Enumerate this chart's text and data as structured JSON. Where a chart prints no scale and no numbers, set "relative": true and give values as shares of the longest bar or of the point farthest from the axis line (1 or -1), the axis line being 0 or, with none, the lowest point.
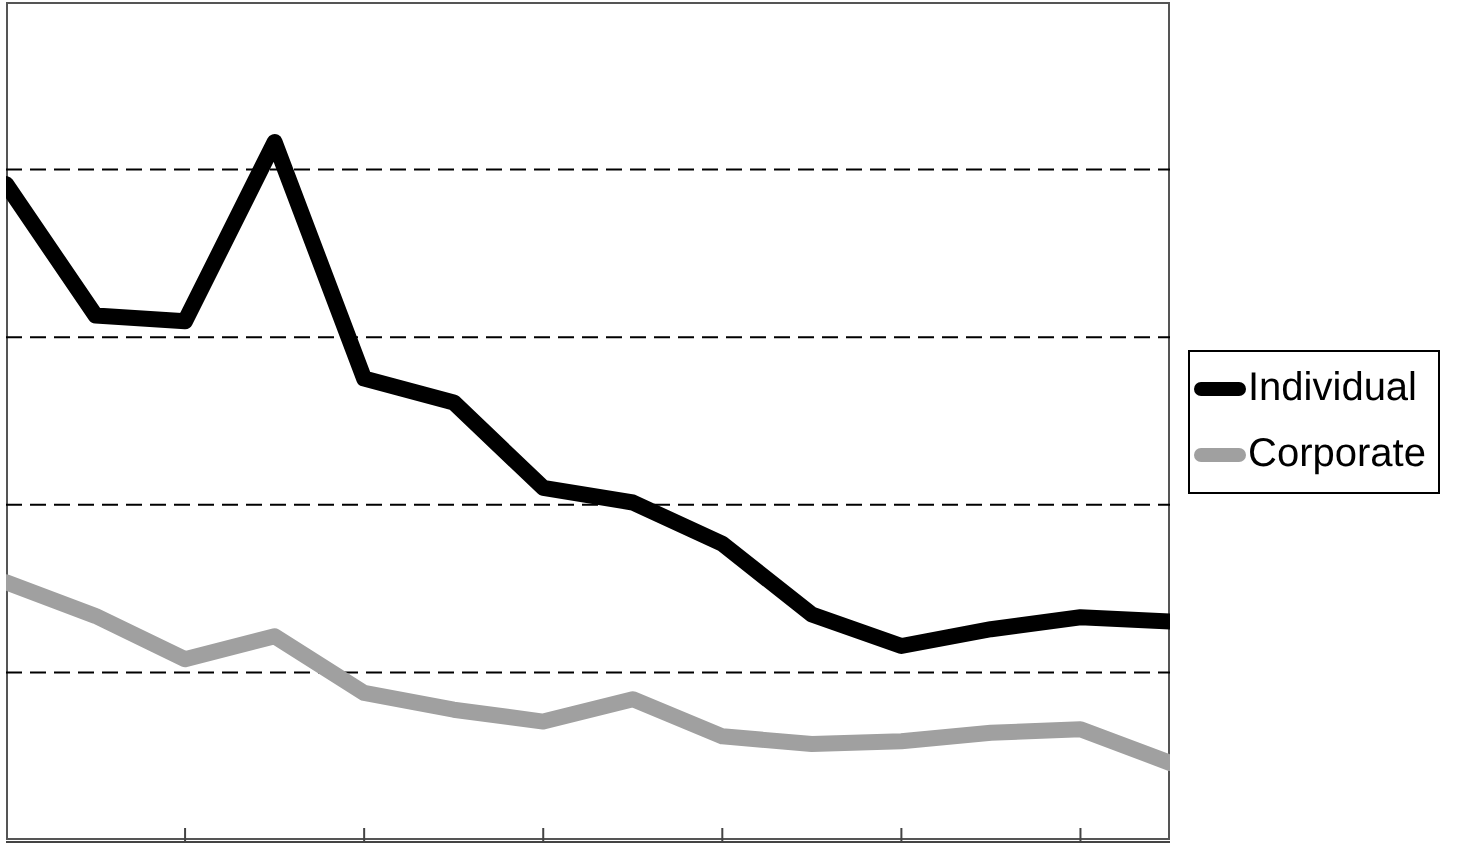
{
  "chart_data": {
    "type": "line",
    "relative": true,
    "categories": [
      null,
      null,
      null,
      null,
      null,
      null,
      null,
      null,
      null,
      null,
      null,
      null,
      null,
      null
    ],
    "series": [
      {
        "name": "Individual",
        "color": "#000000",
        "values": [
          0.94,
          0.752,
          0.744,
          1,
          0.662,
          0.628,
          0.506,
          0.485,
          0.426,
          0.325,
          0.28,
          0.304,
          0.321,
          0.315
        ]
      },
      {
        "name": "Corporate",
        "color": "#a0a0a0",
        "values": [
          0.371,
          0.323,
          0.261,
          0.294,
          0.213,
          0.189,
          0.172,
          0.204,
          0.151,
          0.14,
          0.144,
          0.156,
          0.161,
          0.113
        ]
      }
    ],
    "grid": "y",
    "legend": "right",
    "marker": "none",
    "line_style": "solid"
  }
}
